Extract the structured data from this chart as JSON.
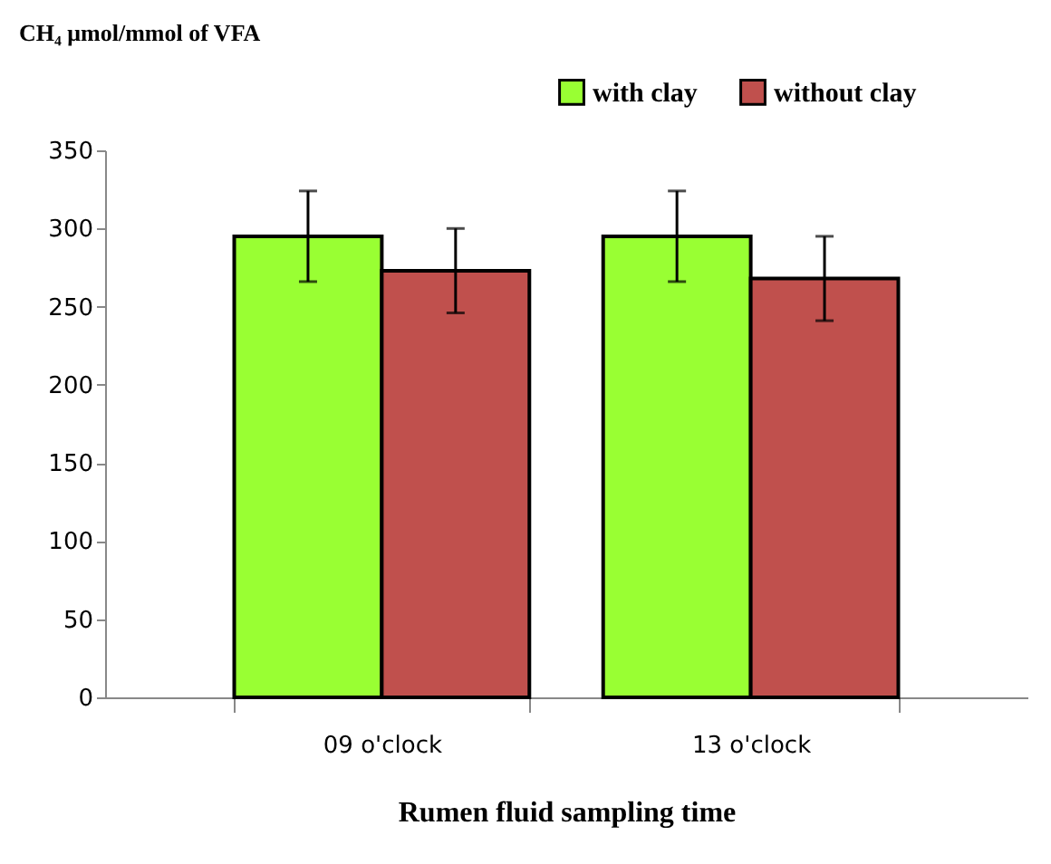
{
  "chart_data": {
    "type": "bar",
    "ylabel": "CH₄ μmol/mmol of VFA",
    "xlabel": "Rumen fluid sampling time",
    "categories": [
      "09 o'clock",
      "13 o'clock"
    ],
    "series": [
      {
        "name": "with clay",
        "color": "#99ff33",
        "values": [
          295,
          295
        ],
        "errors": [
          29,
          29
        ]
      },
      {
        "name": "without clay",
        "color": "#c0504d",
        "values": [
          273,
          268
        ],
        "errors": [
          27,
          27
        ]
      }
    ],
    "ylim": [
      0,
      350
    ],
    "yticks": [
      0,
      50,
      100,
      150,
      200,
      250,
      300,
      350
    ],
    "grid": false,
    "legend": "top right"
  }
}
